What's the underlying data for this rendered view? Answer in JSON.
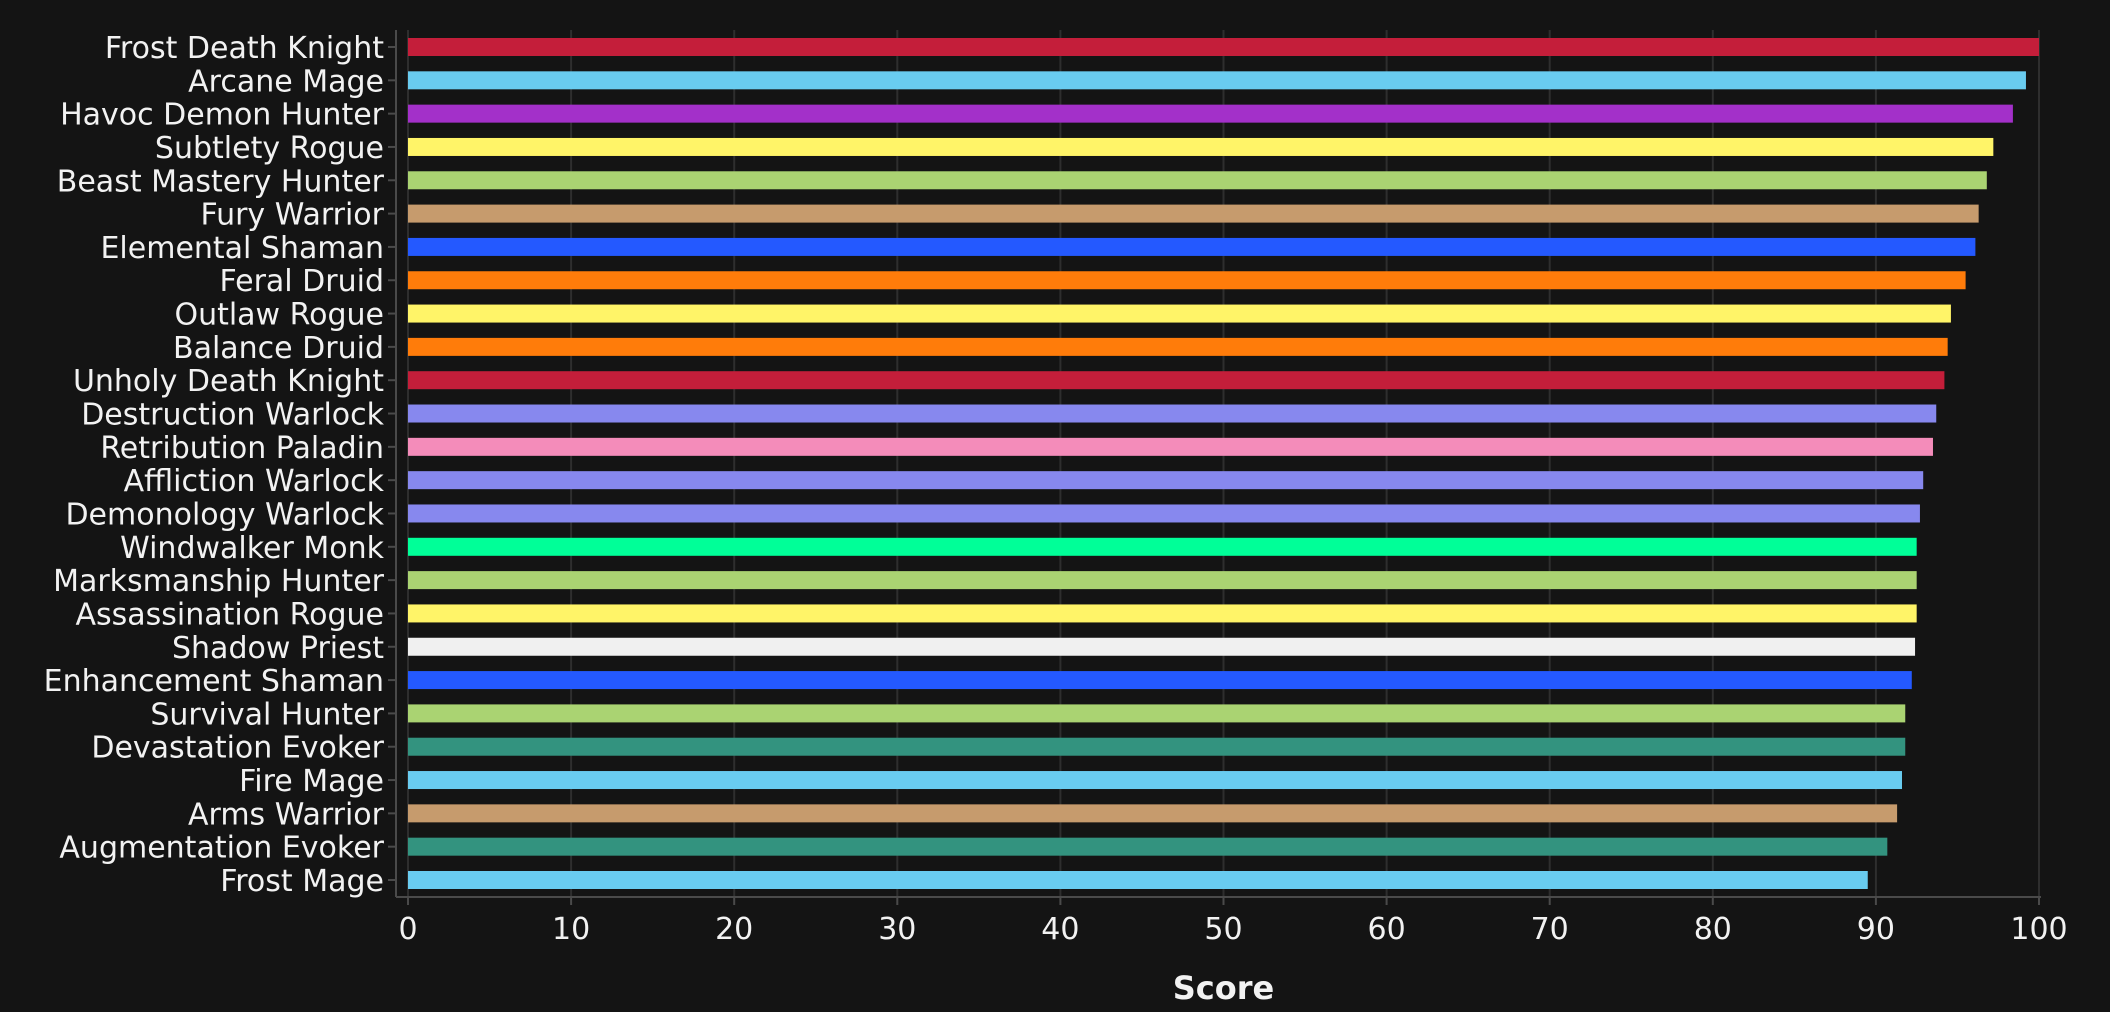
{
  "chart_data": {
    "type": "bar",
    "orientation": "horizontal",
    "xlabel": "Score",
    "xlim": [
      0,
      100
    ],
    "xticks": [
      0,
      10,
      20,
      30,
      40,
      50,
      60,
      70,
      80,
      90,
      100
    ],
    "grid": true,
    "categories": [
      "Frost Death Knight",
      "Arcane Mage",
      "Havoc Demon Hunter",
      "Subtlety Rogue",
      "Beast Mastery Hunter",
      "Fury Warrior",
      "Elemental Shaman",
      "Feral Druid",
      "Outlaw Rogue",
      "Balance Druid",
      "Unholy Death Knight",
      "Destruction Warlock",
      "Retribution Paladin",
      "Affliction Warlock",
      "Demonology Warlock",
      "Windwalker Monk",
      "Marksmanship Hunter",
      "Assassination Rogue",
      "Shadow Priest",
      "Enhancement Shaman",
      "Survival Hunter",
      "Devastation Evoker",
      "Fire Mage",
      "Arms Warrior",
      "Augmentation Evoker",
      "Frost Mage"
    ],
    "values": [
      100,
      99.2,
      98.4,
      97.2,
      96.8,
      96.3,
      96.1,
      95.5,
      94.6,
      94.4,
      94.2,
      93.7,
      93.5,
      92.9,
      92.7,
      92.5,
      92.5,
      92.5,
      92.4,
      92.2,
      91.8,
      91.8,
      91.6,
      91.3,
      90.7,
      89.5
    ],
    "colors": [
      "#C41E3A",
      "#69CCF0",
      "#A330C9",
      "#FFF468",
      "#AAD372",
      "#C69B6D",
      "#2459FF",
      "#FF7C0A",
      "#FFF468",
      "#FF7C0A",
      "#C41E3A",
      "#8788EE",
      "#F48CBA",
      "#8788EE",
      "#8788EE",
      "#00FF98",
      "#AAD372",
      "#FFF468",
      "#F0F0F0",
      "#2459FF",
      "#AAD372",
      "#33937F",
      "#69CCF0",
      "#C69B6D",
      "#33937F",
      "#69CCF0"
    ]
  }
}
